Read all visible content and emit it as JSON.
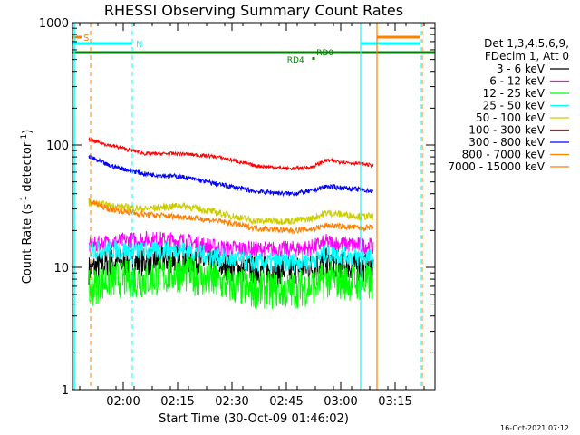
{
  "chart_data": {
    "type": "line",
    "title": "RHESSI Observing Summary Count Rates",
    "xlabel": "Start Time (30-Oct-09 01:46:02)",
    "ylabel_main": "Count Rate (s",
    "ylabel_sup1": "-1",
    "ylabel_mid": " detector",
    "ylabel_sup2": "-1",
    "ylabel_end": ")",
    "yscale": "log",
    "ylim": [
      1,
      1000
    ],
    "xlim": [
      "01:46",
      "03:26"
    ],
    "xlim_minutes": [
      0,
      100
    ],
    "y_ticks": [
      {
        "value": 1,
        "label": "1"
      },
      {
        "value": 10,
        "label": "10"
      },
      {
        "value": 100,
        "label": "100"
      },
      {
        "value": 1000,
        "label": "1000"
      }
    ],
    "x_ticks": [
      {
        "minute": 14,
        "label": "02:00"
      },
      {
        "minute": 29,
        "label": "02:15"
      },
      {
        "minute": 44,
        "label": "02:30"
      },
      {
        "minute": 59,
        "label": "02:45"
      },
      {
        "minute": 74,
        "label": "03:00"
      },
      {
        "minute": 89,
        "label": "03:15"
      }
    ],
    "legend_header": [
      "Det 1,3,4,5,6,9,",
      "FDecim 1, Att 0"
    ],
    "series": [
      {
        "name": "3 - 6 keV",
        "color": "#000000",
        "start": 4.5,
        "end": 83,
        "points": [
          [
            4.5,
            9.5
          ],
          [
            10,
            11
          ],
          [
            20,
            11
          ],
          [
            30,
            12
          ],
          [
            40,
            10.5
          ],
          [
            50,
            9.5
          ],
          [
            60,
            9.5
          ],
          [
            66,
            10
          ],
          [
            70,
            11
          ],
          [
            80,
            10
          ],
          [
            83,
            10
          ]
        ]
      },
      {
        "name": "6 - 12 keV",
        "color": "#ff00ff",
        "start": 4.5,
        "end": 83,
        "points": [
          [
            4.5,
            15
          ],
          [
            10,
            16
          ],
          [
            20,
            17
          ],
          [
            30,
            16.5
          ],
          [
            40,
            14.5
          ],
          [
            50,
            14
          ],
          [
            60,
            14
          ],
          [
            66,
            14.5
          ],
          [
            70,
            16
          ],
          [
            80,
            15
          ],
          [
            83,
            15
          ]
        ]
      },
      {
        "name": "12 - 25 keV",
        "color": "#00ff00",
        "start": 4.5,
        "end": 83,
        "points": [
          [
            4.5,
            6.5
          ],
          [
            10,
            8
          ],
          [
            20,
            8
          ],
          [
            30,
            9
          ],
          [
            40,
            7.5
          ],
          [
            50,
            6.5
          ],
          [
            60,
            6.5
          ],
          [
            66,
            7
          ],
          [
            70,
            8
          ],
          [
            80,
            7.5
          ],
          [
            83,
            7.5
          ]
        ]
      },
      {
        "name": "25 - 50 keV",
        "color": "#00ffff",
        "start": 4.5,
        "end": 83,
        "points": [
          [
            4.5,
            14
          ],
          [
            10,
            14
          ],
          [
            20,
            13.5
          ],
          [
            30,
            14
          ],
          [
            40,
            12
          ],
          [
            50,
            11
          ],
          [
            60,
            11
          ],
          [
            66,
            11.5
          ],
          [
            70,
            13
          ],
          [
            80,
            12
          ],
          [
            83,
            12
          ]
        ]
      },
      {
        "name": "50 - 100 keV",
        "color": "#cccc00",
        "start": 4.5,
        "end": 83,
        "points": [
          [
            4.5,
            34
          ],
          [
            10,
            32
          ],
          [
            20,
            30
          ],
          [
            30,
            32
          ],
          [
            40,
            28
          ],
          [
            50,
            24
          ],
          [
            60,
            24
          ],
          [
            66,
            25
          ],
          [
            70,
            28
          ],
          [
            80,
            26
          ],
          [
            83,
            26
          ]
        ]
      },
      {
        "name": "100 - 300 keV",
        "color": "#ff0000",
        "start": 4.5,
        "end": 83,
        "points": [
          [
            4.5,
            110
          ],
          [
            10,
            100
          ],
          [
            20,
            85
          ],
          [
            30,
            85
          ],
          [
            40,
            80
          ],
          [
            50,
            68
          ],
          [
            60,
            64
          ],
          [
            66,
            66
          ],
          [
            70,
            75
          ],
          [
            80,
            70
          ],
          [
            83,
            68
          ]
        ]
      },
      {
        "name": "300 - 800 keV",
        "color": "#0000ff",
        "start": 4.5,
        "end": 83,
        "points": [
          [
            4.5,
            80
          ],
          [
            10,
            68
          ],
          [
            20,
            58
          ],
          [
            30,
            55
          ],
          [
            40,
            48
          ],
          [
            50,
            42
          ],
          [
            60,
            40
          ],
          [
            66,
            42
          ],
          [
            70,
            46
          ],
          [
            80,
            43
          ],
          [
            83,
            42
          ]
        ]
      },
      {
        "name": "800 - 7000 keV",
        "color": "#ff8000",
        "start": 4.5,
        "end": 83,
        "points": [
          [
            4.5,
            35
          ],
          [
            10,
            30
          ],
          [
            20,
            27
          ],
          [
            30,
            26
          ],
          [
            40,
            24
          ],
          [
            50,
            21
          ],
          [
            60,
            20
          ],
          [
            66,
            20.5
          ],
          [
            70,
            22
          ],
          [
            80,
            21
          ],
          [
            83,
            21
          ]
        ]
      },
      {
        "name": "7000 - 15000 keV",
        "color": "#ff8000",
        "start": 4.5,
        "end": 83,
        "points": []
      }
    ],
    "annotations": {
      "s_label": "S",
      "n_label": "N",
      "rd0_label": "RD0",
      "rd4_label": "RD4"
    },
    "timestamp": "16-Oct-2021 07:12"
  }
}
